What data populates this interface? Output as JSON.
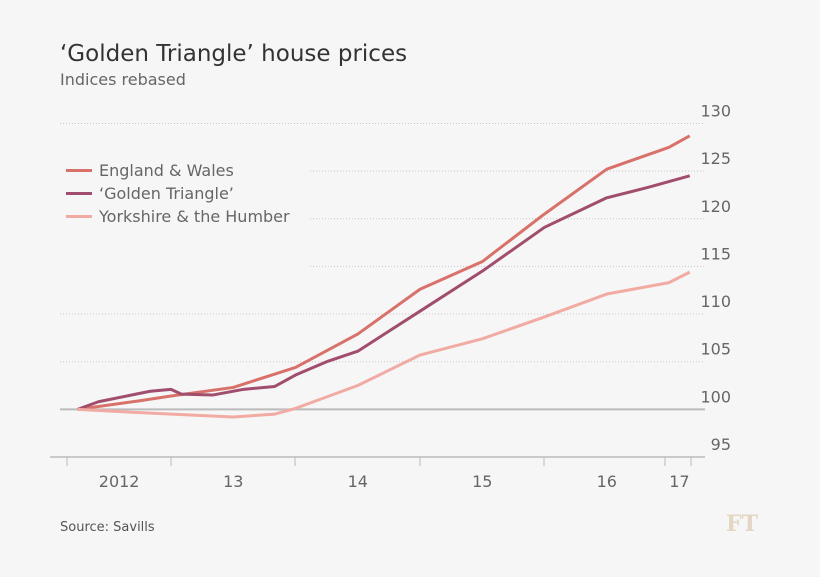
{
  "chart_data": {
    "type": "line",
    "title": "‘Golden Triangle’ house prices",
    "subtitle": "Indices rebased",
    "source": "Source: Savills",
    "logo": "FT",
    "ylim": [
      95,
      130
    ],
    "yticks": [
      95,
      100,
      105,
      110,
      115,
      120,
      125,
      130
    ],
    "xlim": [
      "2012-03",
      "2017-04"
    ],
    "xtick_labels": [
      {
        "label": "2012",
        "at": "2012-08"
      },
      {
        "label": "13",
        "at": "2013-07"
      },
      {
        "label": "14",
        "at": "2014-07"
      },
      {
        "label": "15",
        "at": "2015-07"
      },
      {
        "label": "16",
        "at": "2016-07"
      },
      {
        "label": "17",
        "at": "2017-02"
      }
    ],
    "grid": "horizontal dotted",
    "legend": "top-left",
    "series": [
      {
        "name": "England & Wales",
        "color": "#d9716b",
        "points": [
          [
            "2012-04",
            100
          ],
          [
            "2012-10",
            100.9
          ],
          [
            "2013-01",
            101.4
          ],
          [
            "2013-07",
            102.3
          ],
          [
            "2014-01",
            104.4
          ],
          [
            "2014-07",
            107.9
          ],
          [
            "2015-01",
            112.6
          ],
          [
            "2015-07",
            115.5
          ],
          [
            "2016-01",
            120.5
          ],
          [
            "2016-07",
            125.2
          ],
          [
            "2017-01",
            127.5
          ],
          [
            "2017-03",
            128.7
          ]
        ]
      },
      {
        "name": "‘Golden Triangle’",
        "color": "#a14d6d",
        "points": [
          [
            "2012-04",
            100
          ],
          [
            "2012-06",
            100.8
          ],
          [
            "2012-11",
            101.9
          ],
          [
            "2013-01",
            102.1
          ],
          [
            "2013-02",
            101.6
          ],
          [
            "2013-05",
            101.5
          ],
          [
            "2013-08",
            102.1
          ],
          [
            "2013-11",
            102.4
          ],
          [
            "2014-01",
            103.6
          ],
          [
            "2014-04",
            105.0
          ],
          [
            "2014-07",
            106.1
          ],
          [
            "2015-01",
            110.3
          ],
          [
            "2015-07",
            114.5
          ],
          [
            "2016-01",
            119.1
          ],
          [
            "2016-07",
            122.2
          ],
          [
            "2016-11",
            123.3
          ],
          [
            "2017-03",
            124.5
          ]
        ]
      },
      {
        "name": "Yorkshire & the Humber",
        "color": "#f1aba3",
        "points": [
          [
            "2012-04",
            100
          ],
          [
            "2012-11",
            99.6
          ],
          [
            "2013-07",
            99.2
          ],
          [
            "2013-11",
            99.5
          ],
          [
            "2014-01",
            100.1
          ],
          [
            "2014-07",
            102.5
          ],
          [
            "2015-01",
            105.7
          ],
          [
            "2015-07",
            107.4
          ],
          [
            "2016-01",
            109.7
          ],
          [
            "2016-07",
            112.1
          ],
          [
            "2017-01",
            113.3
          ],
          [
            "2017-03",
            114.4
          ]
        ]
      }
    ]
  }
}
